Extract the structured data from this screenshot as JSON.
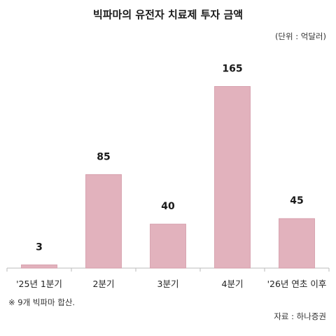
{
  "chart_data": {
    "type": "bar",
    "title": "빅파마의 유전자 치료제 투자 금액",
    "unit_note": "(단위 : 억달러)",
    "categories": [
      "'25년 1분기",
      "2분기",
      "3분기",
      "4분기",
      "'26년 연초 이후"
    ],
    "values": [
      3,
      85,
      40,
      165,
      45
    ],
    "data_labels": [
      "3",
      "85",
      "40",
      "165",
      "45"
    ],
    "ylim": [
      0,
      185
    ],
    "grid": false,
    "legend": "none",
    "bar_color": "#e2b2bd",
    "bar_edge_color": "#d49aa8",
    "axis_color": "#bbbbbb"
  },
  "footnote": "※ 9개 빅파마 합산.",
  "source": "자료 : 하나증권"
}
